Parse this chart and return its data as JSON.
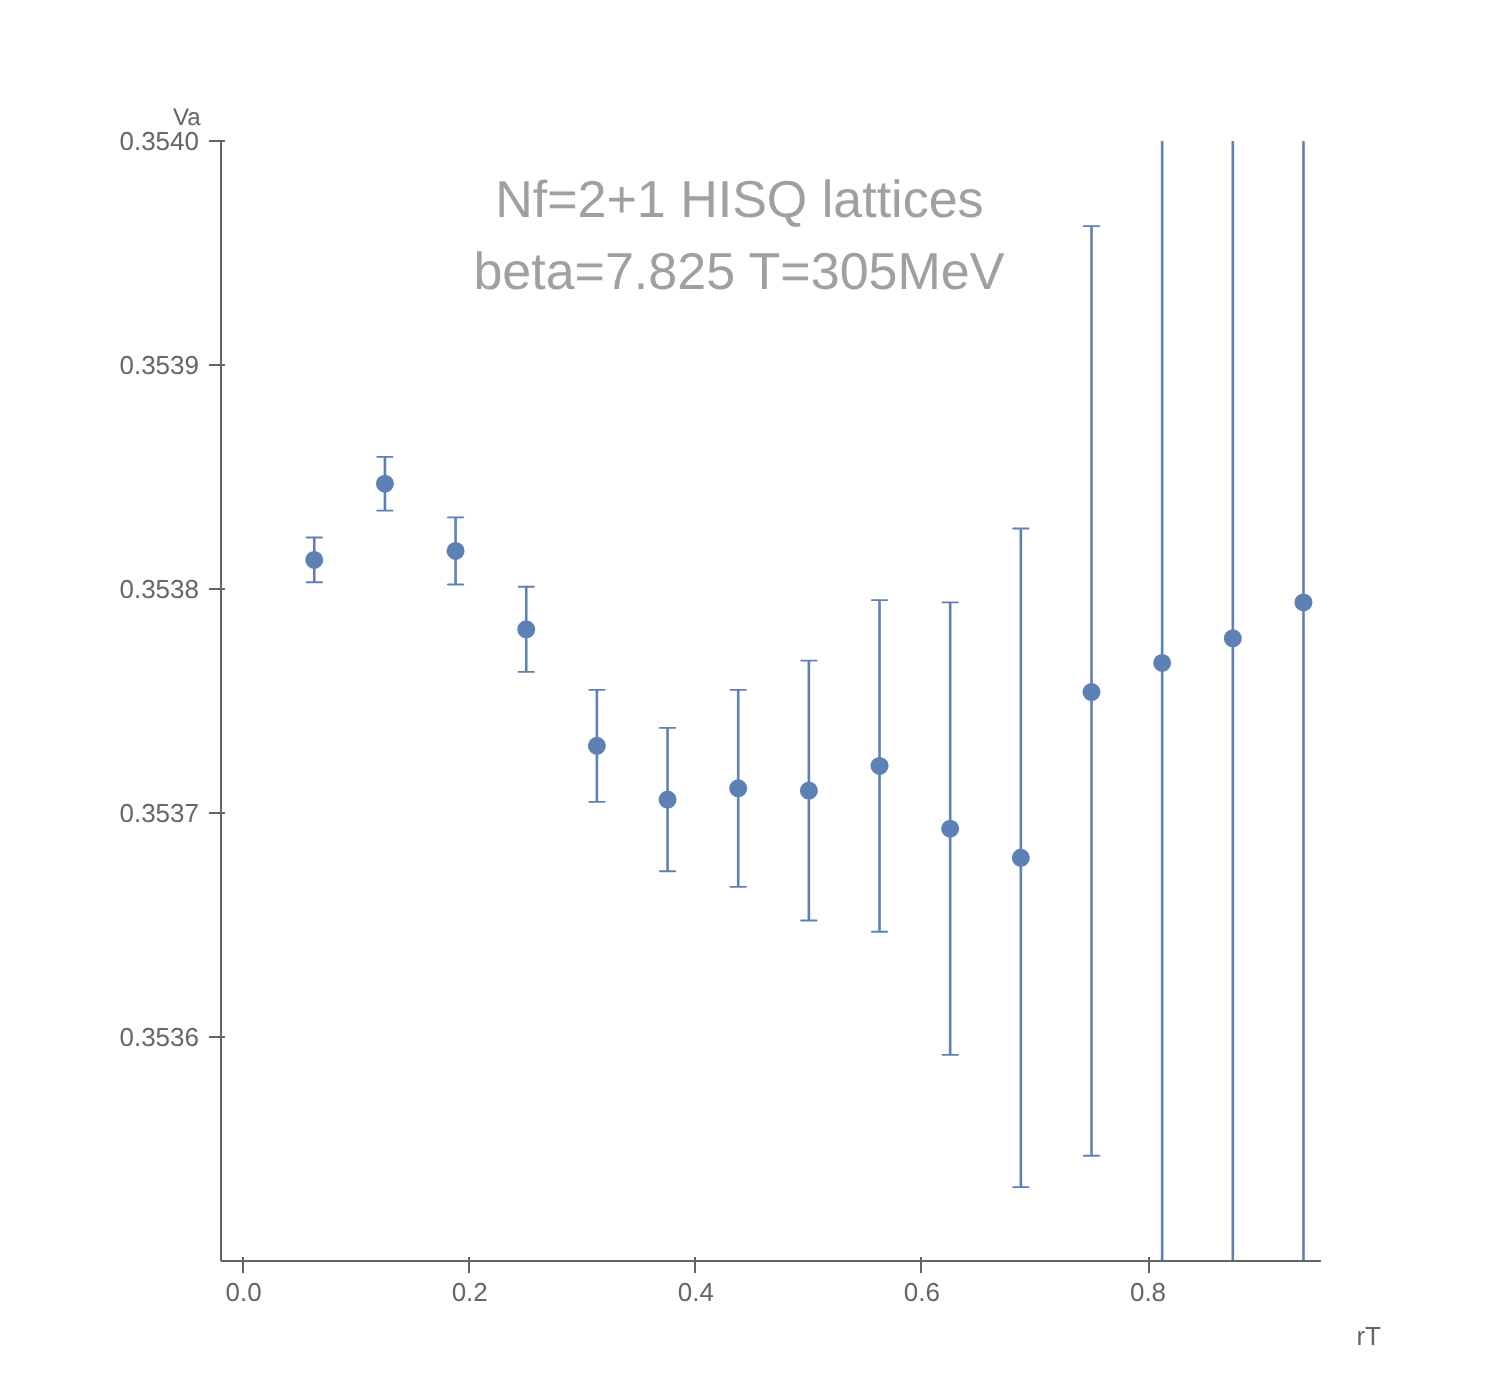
{
  "chart_data": {
    "type": "scatter",
    "annotations": [
      "Nf=2+1 HISQ lattices\nbeta=7.825 T=305MeV"
    ],
    "xlabel": "rT",
    "ylabel": "Va",
    "x": [
      0.0625,
      0.125,
      0.1875,
      0.25,
      0.3125,
      0.375,
      0.4375,
      0.5,
      0.5625,
      0.625,
      0.6875,
      0.75,
      0.8125,
      0.875,
      0.9375
    ],
    "series": [
      {
        "color": "#5e81b5",
        "values": [
          0.353813,
          0.353847,
          0.353817,
          0.353782,
          0.35373,
          0.353706,
          0.353711,
          0.35371,
          0.353721,
          0.353693,
          0.35368,
          0.353754,
          0.353767,
          0.353778,
          0.353794
        ],
        "errors": [
          1e-05,
          1.2e-05,
          1.5e-05,
          1.9e-05,
          2.5e-05,
          3.2e-05,
          4.4e-05,
          5.8e-05,
          7.4e-05,
          0.000101,
          [
            0.353533,
            0.353827
          ],
          [
            0.353547,
            0.353962
          ],
          [
            0.3535,
            0.354
          ],
          [
            0.3535,
            0.354
          ],
          [
            0.3535,
            0.354
          ]
        ]
      }
    ],
    "marker": "circle",
    "xlim": [
      -0.02,
      0.953
    ],
    "ylim": [
      0.3535,
      0.354
    ],
    "xticks": [
      {
        "value": 0,
        "label": "0.0"
      },
      0.2,
      0.4,
      0.6,
      0.8
    ],
    "yticks": [
      {
        "value": 0.3536,
        "label": "0.3536"
      },
      {
        "value": 0.3537,
        "label": "0.3537"
      },
      {
        "value": 0.3538,
        "label": "0.3538"
      },
      {
        "value": 0.3539,
        "label": "0.3539"
      },
      {
        "value": 0.354,
        "label": "0.3540"
      }
    ],
    "grid": false
  }
}
